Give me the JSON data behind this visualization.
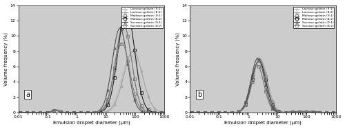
{
  "xlabel": "Emulsion droplet diameter (μm)",
  "ylabel": "Volume frequency (%)",
  "xlim": [
    0.01,
    1000
  ],
  "ylim": [
    0,
    14
  ],
  "yticks": [
    0,
    2,
    4,
    6,
    8,
    10,
    12,
    14
  ],
  "legend_labels": [
    "Lactose:gelatin (9:1)",
    "Lactose:gelatin (8:2)",
    "Maltose:gelatin (9:1)",
    "Maltose:gelatin (8:2)",
    "Sucrose:gelatin (9:1)",
    "Sucrose:gelatin (8:2)"
  ],
  "bg_color": "#cccccc",
  "panel_labels": [
    "a",
    "b"
  ],
  "curves_a": {
    "peaks_mu": [
      70,
      85,
      40,
      50,
      30,
      35
    ],
    "peaks_sigma": [
      0.3,
      0.32,
      0.27,
      0.28,
      0.26,
      0.27
    ],
    "peaks_scale": [
      7.5,
      8.0,
      11.5,
      13.5,
      11.0,
      9.0
    ],
    "small_mu": [
      0.2,
      0.2,
      0.18,
      0.18,
      0.18,
      0.18
    ],
    "small_sigma": [
      0.13,
      0.13,
      0.12,
      0.12,
      0.12,
      0.12
    ],
    "small_scale": [
      0.38,
      0.4,
      0.3,
      0.32,
      0.28,
      0.3
    ]
  },
  "curves_b": {
    "peaks_mu": [
      2.2,
      2.5,
      2.0,
      2.3,
      2.1,
      2.4
    ],
    "peaks_sigma": [
      0.24,
      0.25,
      0.23,
      0.24,
      0.23,
      0.24
    ],
    "peaks_scale": [
      7.2,
      7.0,
      6.2,
      6.8,
      7.1,
      6.9
    ],
    "tail_mu": [
      80,
      80,
      80,
      80,
      80,
      80
    ],
    "tail_sigma": [
      0.38,
      0.38,
      0.38,
      0.38,
      0.38,
      0.38
    ],
    "tail_scale": [
      0.18,
      0.18,
      0.12,
      0.12,
      0.15,
      0.12
    ]
  },
  "colors_a": [
    "#c0c0c0",
    "#a0a0a0",
    "#707070",
    "#202020",
    "#505050",
    "#808080"
  ],
  "colors_b": [
    "#c0c0c0",
    "#a0a0a0",
    "#707070",
    "#202020",
    "#505050",
    "#808080"
  ],
  "markers": [
    "^",
    "^",
    "s",
    "s",
    "^",
    "s"
  ],
  "lw": 0.8,
  "markersize": 2.5,
  "num_markers": 22
}
